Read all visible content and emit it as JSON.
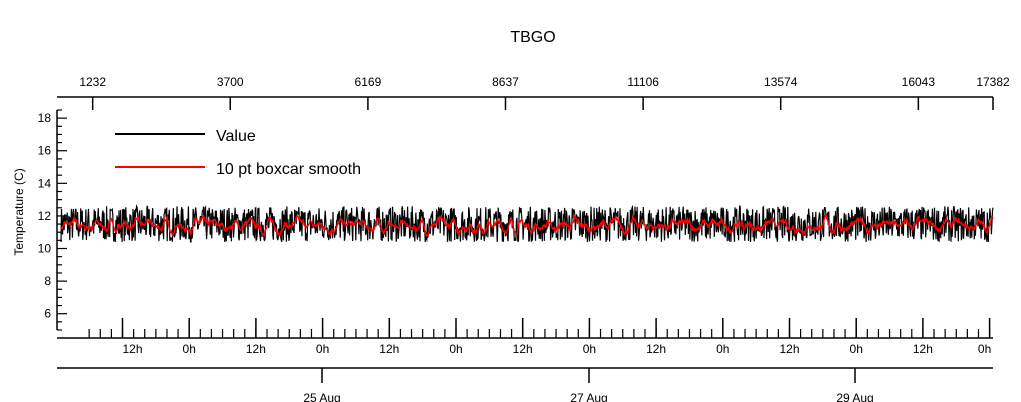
{
  "chart_data": {
    "type": "line",
    "title": "TBGO",
    "ylabel": "Temperature (C)",
    "ylim": [
      5,
      18.5
    ],
    "y_ticks": [
      6,
      8,
      10,
      12,
      14,
      16,
      18
    ],
    "x_top_axis": {
      "ticks": [
        1232,
        3700,
        6169,
        8637,
        11106,
        13574,
        16043,
        17382
      ],
      "labels": [
        "1232",
        "3700",
        "6169",
        "8637",
        "11106",
        "13574",
        "16043",
        "17382"
      ]
    },
    "x_bottom_axis": {
      "hour_labels": [
        "12h",
        "0h",
        "12h",
        "0h",
        "12h",
        "0h",
        "12h",
        "0h",
        "12h",
        "0h",
        "12h",
        "0h",
        "12h",
        "0h"
      ],
      "date_labels": [
        "25 Aug",
        "27 Aug",
        "29 Aug"
      ]
    },
    "legend": {
      "placement": "top-left",
      "entries": [
        "Value",
        "10 pt boxcar smooth"
      ]
    },
    "series": [
      {
        "name": "Value",
        "color": "#000000",
        "min": 10.4,
        "max": 12.6,
        "mean": 11.5
      },
      {
        "name": "10 pt boxcar smooth",
        "color": "#ff0000",
        "min": 10.8,
        "max": 12.0,
        "mean": 11.4
      }
    ]
  }
}
